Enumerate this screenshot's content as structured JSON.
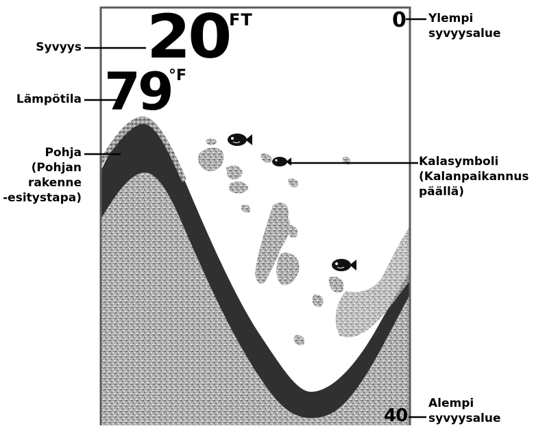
{
  "display": {
    "depth_value": "20",
    "depth_unit": "FT",
    "temperature_value": "79",
    "temperature_unit": "°F",
    "upper_range": "0",
    "lower_range": "40"
  },
  "callouts": {
    "depth": "Syvyys",
    "temperature": "Lämpötila",
    "bottom": [
      "Pohja",
      "(Pohjan",
      "rakenne",
      "-esitystapa)"
    ],
    "upper_range": [
      "Ylempi",
      "syvyysalue"
    ],
    "fish": [
      "Kalasymboli",
      "(Kalanpaikannus",
      "päällä)"
    ],
    "lower_range": [
      "Alempi",
      "syvyysalue"
    ]
  },
  "colors": {
    "bottom_band": "#333333",
    "bottom_fill": "#9a9a9a",
    "clutter": "#8c8c8c",
    "frame": "#555555"
  },
  "icons": [
    "fish-icon",
    "fish-icon",
    "fish-icon"
  ]
}
